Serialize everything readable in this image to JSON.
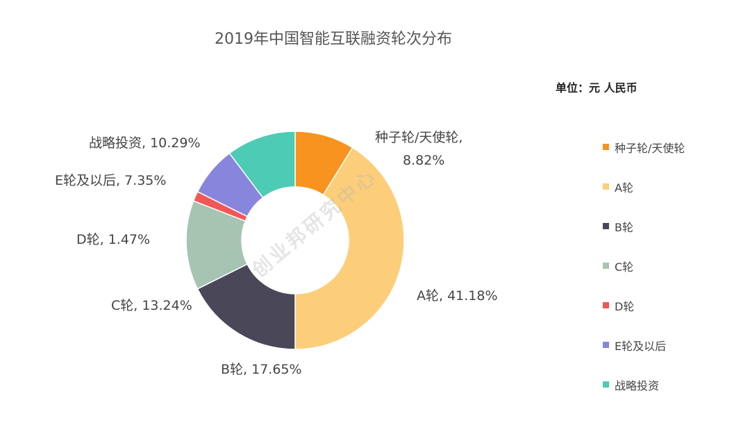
{
  "chart_data": {
    "type": "pie",
    "title": "2019年中国智能互联融资轮次分布",
    "unit_label": "单位：元 人民币",
    "watermark": "创业邦研究中心",
    "series": [
      {
        "name": "种子轮/天使轮",
        "value": 8.82,
        "label_lines": [
          "种子轮/天使轮,",
          "8.82%"
        ],
        "color": "#F7931E"
      },
      {
        "name": "A轮",
        "value": 41.18,
        "label_lines": [
          "A轮, 41.18%"
        ],
        "color": "#FCCE7A"
      },
      {
        "name": "B轮",
        "value": 17.65,
        "label_lines": [
          "B轮, 17.65%"
        ],
        "color": "#4A4858"
      },
      {
        "name": "C轮",
        "value": 13.24,
        "label_lines": [
          "C轮, 13.24%"
        ],
        "color": "#A6C4B1"
      },
      {
        "name": "D轮",
        "value": 1.47,
        "label_lines": [
          "D轮, 1.47%"
        ],
        "color": "#F25757"
      },
      {
        "name": "E轮及以后",
        "value": 7.35,
        "label_lines": [
          "E轮及以后, 7.35%"
        ],
        "color": "#8886DC"
      },
      {
        "name": "战略投资",
        "value": 10.29,
        "label_lines": [
          "战略投资, 10.29%"
        ],
        "color": "#4DCBB5"
      }
    ],
    "legend_position": "right"
  }
}
